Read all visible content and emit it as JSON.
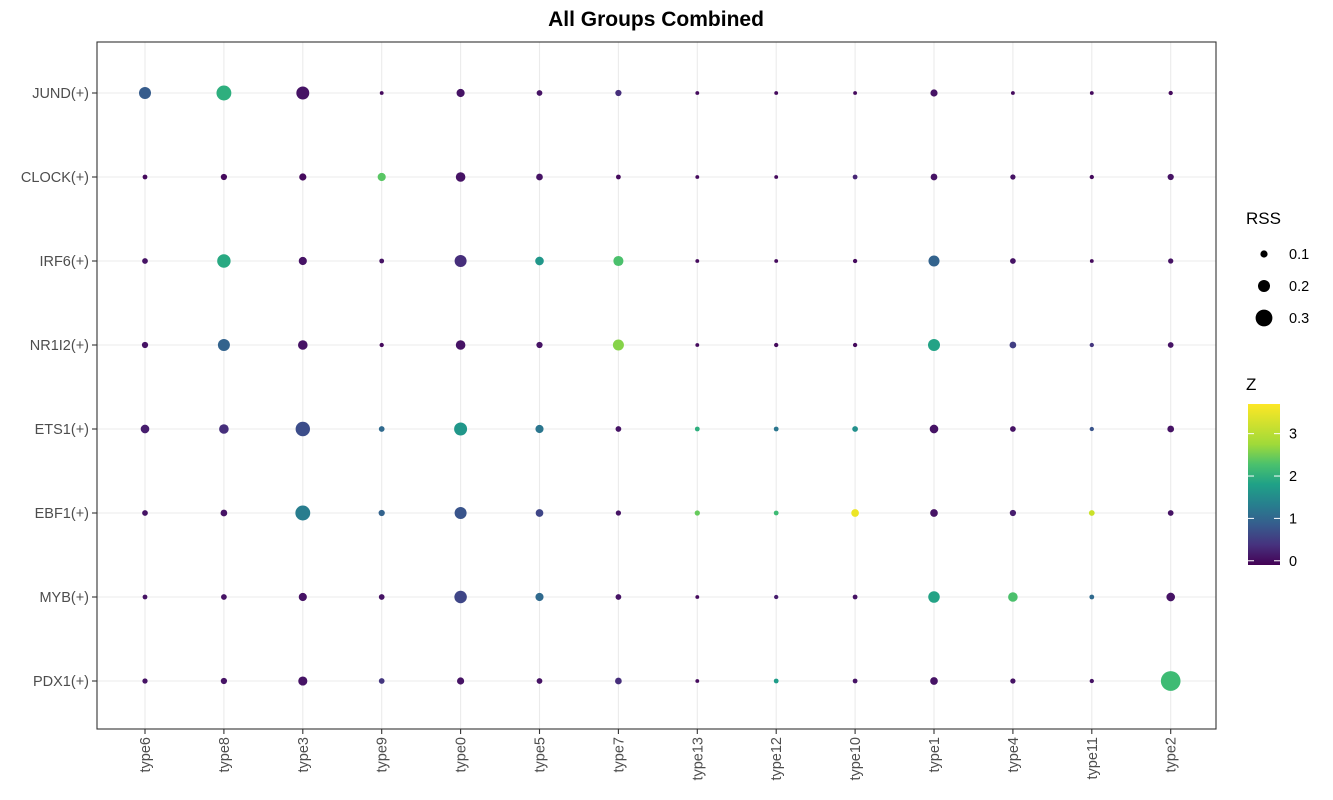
{
  "chart_data": {
    "type": "scatter",
    "title": "All Groups Combined",
    "xlabel": "",
    "ylabel": "",
    "grid": true,
    "legend_position": "right",
    "categories": [
      "type6",
      "type8",
      "type3",
      "type9",
      "type0",
      "type5",
      "type7",
      "type13",
      "type12",
      "type10",
      "type1",
      "type4",
      "type11",
      "type2"
    ],
    "rows": [
      "JUND(+)",
      "CLOCK(+)",
      "IRF6(+)",
      "NR1I2(+)",
      "ETS1(+)",
      "EBF1(+)",
      "MYB(+)",
      "PDX1(+)"
    ],
    "size_legend": {
      "title": "RSS",
      "values": [
        0.1,
        0.2,
        0.3
      ],
      "labels": [
        "0.1",
        "0.2",
        "0.3"
      ]
    },
    "color_legend": {
      "title": "Z",
      "range": [
        -0.1,
        3.7
      ],
      "ticks": [
        0,
        1,
        2,
        3
      ],
      "tick_labels": [
        "0",
        "1",
        "2",
        "3"
      ],
      "colormap": "viridis"
    },
    "series": [
      {
        "row": "JUND(+)",
        "rss": [
          0.2,
          0.26,
          0.22,
          0.03,
          0.12,
          0.07,
          0.08,
          0.03,
          0.03,
          0.03,
          0.1,
          0.03,
          0.03,
          0.04
        ],
        "z": [
          1.0,
          2.3,
          0.1,
          0.0,
          0.1,
          0.1,
          0.4,
          0.0,
          0.0,
          0.0,
          0.1,
          0.0,
          0.0,
          0.0
        ]
      },
      {
        "row": "CLOCK(+)",
        "rss": [
          0.05,
          0.08,
          0.1,
          0.12,
          0.15,
          0.09,
          0.05,
          0.03,
          0.03,
          0.05,
          0.09,
          0.06,
          0.04,
          0.08
        ],
        "z": [
          0.0,
          0.0,
          0.0,
          2.7,
          0.1,
          0.1,
          0.0,
          0.0,
          0.0,
          0.3,
          0.1,
          0.1,
          0.0,
          0.1
        ]
      },
      {
        "row": "IRF6(+)",
        "rss": [
          0.07,
          0.23,
          0.12,
          0.05,
          0.2,
          0.13,
          0.16,
          0.03,
          0.03,
          0.04,
          0.18,
          0.07,
          0.03,
          0.06
        ],
        "z": [
          0.1,
          2.2,
          0.1,
          0.1,
          0.4,
          1.9,
          2.6,
          0.0,
          0.0,
          0.0,
          1.1,
          0.1,
          0.0,
          0.1
        ]
      },
      {
        "row": "NR1I2(+)",
        "rss": [
          0.08,
          0.2,
          0.15,
          0.04,
          0.15,
          0.08,
          0.18,
          0.03,
          0.04,
          0.04,
          0.2,
          0.09,
          0.04,
          0.07
        ],
        "z": [
          0.1,
          1.1,
          0.1,
          0.0,
          0.1,
          0.1,
          3.0,
          0.0,
          0.0,
          0.0,
          2.1,
          0.6,
          0.5,
          0.1
        ]
      },
      {
        "row": "ETS1(+)",
        "rss": [
          0.13,
          0.15,
          0.25,
          0.07,
          0.22,
          0.12,
          0.07,
          0.05,
          0.05,
          0.07,
          0.13,
          0.07,
          0.04,
          0.09
        ],
        "z": [
          0.2,
          0.4,
          0.8,
          1.2,
          1.9,
          1.4,
          0.1,
          2.3,
          1.4,
          1.8,
          0.1,
          0.1,
          0.9,
          0.1
        ]
      },
      {
        "row": "EBF1(+)",
        "rss": [
          0.07,
          0.09,
          0.26,
          0.08,
          0.2,
          0.11,
          0.06,
          0.06,
          0.05,
          0.11,
          0.11,
          0.08,
          0.07,
          0.07
        ],
        "z": [
          0.1,
          0.1,
          1.5,
          1.1,
          0.9,
          0.7,
          0.1,
          2.8,
          2.5,
          3.6,
          0.1,
          0.2,
          3.4,
          0.1
        ]
      },
      {
        "row": "MYB(+)",
        "rss": [
          0.05,
          0.07,
          0.12,
          0.07,
          0.21,
          0.12,
          0.07,
          0.03,
          0.04,
          0.05,
          0.19,
          0.15,
          0.05,
          0.13
        ],
        "z": [
          0.1,
          0.1,
          0.1,
          0.1,
          0.7,
          1.2,
          0.1,
          0.0,
          0.2,
          0.1,
          2.1,
          2.6,
          1.2,
          0.1
        ]
      },
      {
        "row": "PDX1(+)",
        "rss": [
          0.06,
          0.08,
          0.14,
          0.07,
          0.1,
          0.07,
          0.09,
          0.03,
          0.05,
          0.05,
          0.11,
          0.06,
          0.04,
          0.36
        ],
        "z": [
          0.1,
          0.1,
          0.1,
          0.5,
          0.1,
          0.1,
          0.4,
          0.0,
          2.0,
          0.1,
          0.1,
          0.1,
          0.1,
          2.5
        ]
      }
    ]
  }
}
